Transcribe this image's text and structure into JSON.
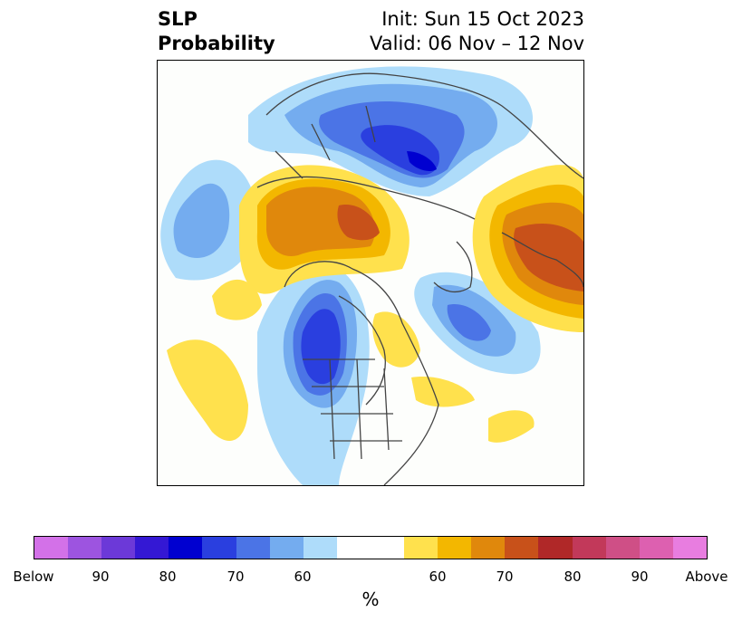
{
  "title": {
    "left_line1": "SLP",
    "left_line2": "Probability",
    "right_line1": "Init: Sun 15 Oct 2023",
    "right_line2": "Valid: 06 Nov – 12 Nov"
  },
  "map": {
    "projection": "polar stereographic, North Pole",
    "region": "Northern Hemisphere (North America, Arctic, Eurasia)"
  },
  "colorbar": {
    "unit": "%",
    "segments": [
      {
        "category": "Below",
        "color": "#d371e8"
      },
      {
        "category": "Below",
        "color": "#9d54e0"
      },
      {
        "category": "Below",
        "color": "#6c39d8"
      },
      {
        "category": "Below",
        "color": "#3418d4"
      },
      {
        "category": "Below",
        "color": "#0000d0"
      },
      {
        "category": "Below",
        "color": "#2a3fdf"
      },
      {
        "category": "Below",
        "color": "#4b74e6"
      },
      {
        "category": "Below",
        "color": "#74acef"
      },
      {
        "category": "Below",
        "color": "#aedcfa"
      },
      {
        "category": "Neutral",
        "color": "#ffffff"
      },
      {
        "category": "Above",
        "color": "#ffe14d"
      },
      {
        "category": "Above",
        "color": "#f3b700"
      },
      {
        "category": "Above",
        "color": "#e0880c"
      },
      {
        "category": "Above",
        "color": "#c8511a"
      },
      {
        "category": "Above",
        "color": "#b02828"
      },
      {
        "category": "Above",
        "color": "#c2395a"
      },
      {
        "category": "Above",
        "color": "#cf4f86"
      },
      {
        "category": "Above",
        "color": "#dd60b0"
      },
      {
        "category": "Above",
        "color": "#e87de0"
      }
    ],
    "tick_labels": [
      "Below",
      "90",
      "80",
      "70",
      "60",
      "60",
      "70",
      "80",
      "90",
      "Above"
    ]
  }
}
